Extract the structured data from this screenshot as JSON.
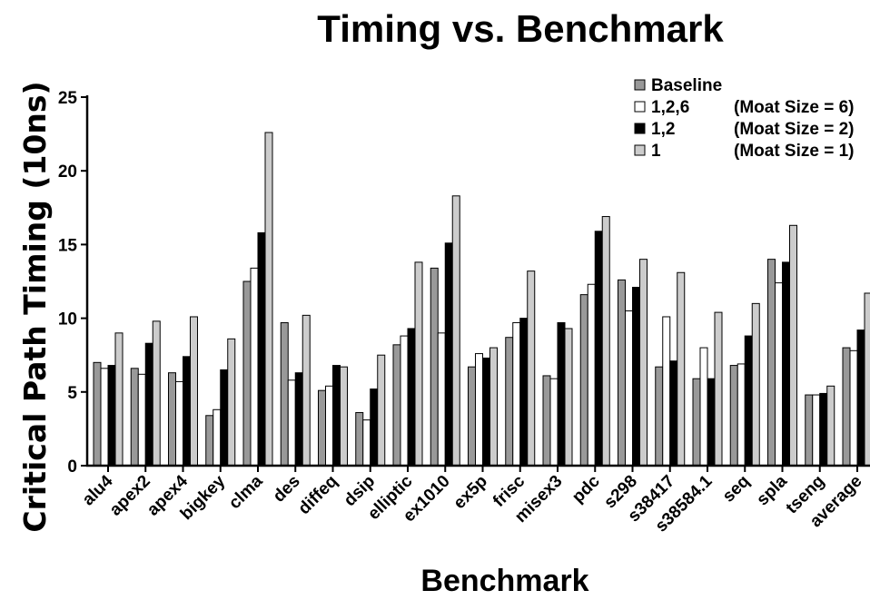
{
  "chart_data": {
    "type": "bar",
    "title": "Timing vs. Benchmark",
    "xlabel": "Benchmark",
    "ylabel": "Critical Path Timing (10ns)",
    "ylim": [
      0,
      25
    ],
    "yticks": [
      0,
      5,
      10,
      15,
      20,
      25
    ],
    "grid": false,
    "legend_position": "top-right",
    "categories": [
      "alu4",
      "apex2",
      "apex4",
      "bigkey",
      "clma",
      "des",
      "diffeq",
      "dsip",
      "elliptic",
      "ex1010",
      "ex5p",
      "frisc",
      "misex3",
      "pdc",
      "s298",
      "s38417",
      "s38584.1",
      "seq",
      "spla",
      "tseng",
      "average"
    ],
    "series": [
      {
        "name": "Baseline",
        "legend_label": "Baseline",
        "color": "#999999",
        "values": [
          7.0,
          6.6,
          6.3,
          3.4,
          12.5,
          9.7,
          5.1,
          3.6,
          8.2,
          13.4,
          6.7,
          8.7,
          6.1,
          11.6,
          12.6,
          6.7,
          5.9,
          6.8,
          14.0,
          4.8,
          8.0
        ]
      },
      {
        "name": "1,2,6",
        "legend_label": "1,2,6",
        "legend_note": "(Moat Size = 6)",
        "color": "#ffffff",
        "values": [
          6.6,
          6.2,
          5.7,
          3.8,
          13.4,
          5.8,
          5.4,
          3.1,
          8.8,
          9.0,
          7.6,
          9.7,
          5.9,
          12.3,
          10.5,
          10.1,
          8.0,
          6.9,
          12.4,
          4.8,
          7.8
        ]
      },
      {
        "name": "1,2",
        "legend_label": "1,2",
        "legend_note": "(Moat Size = 2)",
        "color": "#000000",
        "values": [
          6.8,
          8.3,
          7.4,
          6.5,
          15.8,
          6.3,
          6.8,
          5.2,
          9.3,
          15.1,
          7.3,
          10.0,
          9.7,
          15.9,
          12.1,
          7.1,
          5.9,
          8.8,
          13.8,
          4.9,
          9.2
        ]
      },
      {
        "name": "1",
        "legend_label": "1",
        "legend_note": "(Moat Size = 1)",
        "color": "#cccccc",
        "values": [
          9.0,
          9.8,
          10.1,
          8.6,
          22.6,
          10.2,
          6.7,
          7.5,
          13.8,
          18.3,
          8.0,
          13.2,
          9.3,
          16.9,
          14.0,
          13.1,
          10.4,
          11.0,
          16.3,
          5.4,
          11.7
        ]
      }
    ]
  }
}
